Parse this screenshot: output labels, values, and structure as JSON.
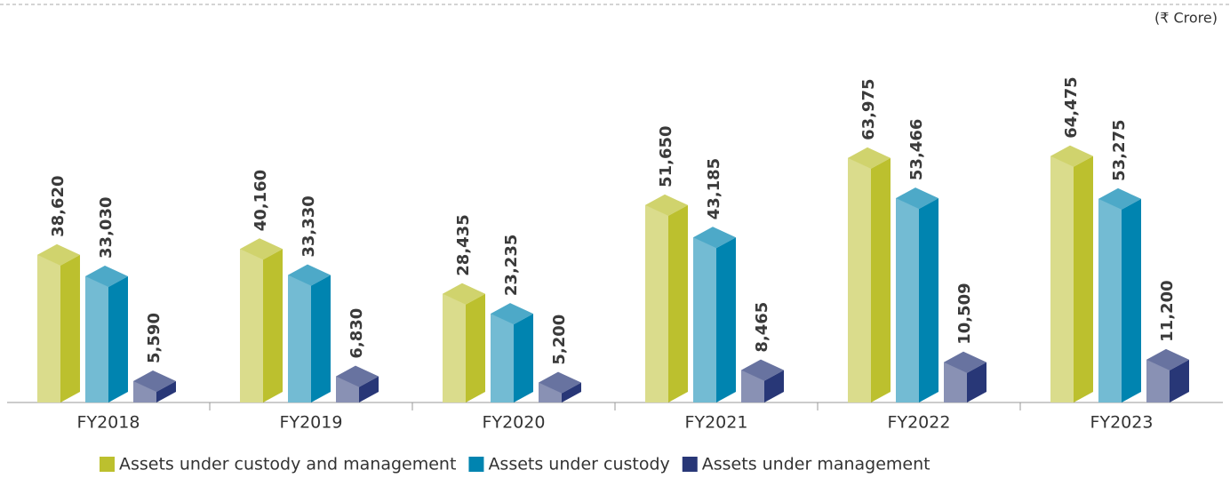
{
  "chart_data": {
    "type": "bar3d",
    "unit_note": "(₹ Crore)",
    "categories": [
      "FY2018",
      "FY2019",
      "FY2020",
      "FY2021",
      "FY2022",
      "FY2023"
    ],
    "series": [
      {
        "name": "Assets under custody and management",
        "color": "#bcc02e",
        "values": [
          38620,
          40160,
          28435,
          51650,
          63975,
          64475
        ],
        "value_labels": [
          "38,620",
          "40,160",
          "28,435",
          "51,650",
          "63,975",
          "64,475"
        ]
      },
      {
        "name": "Assets under custody",
        "color": "#0084b0",
        "values": [
          33030,
          33330,
          23235,
          43185,
          53466,
          53275
        ],
        "value_labels": [
          "33,030",
          "33,330",
          "23,235",
          "43,185",
          "53,466",
          "53,275"
        ]
      },
      {
        "name": "Assets under management",
        "color": "#283777",
        "values": [
          5590,
          6830,
          5200,
          8465,
          10509,
          11200
        ],
        "value_labels": [
          "5,590",
          "6,830",
          "5,200",
          "8,465",
          "10,509",
          "11,200"
        ]
      }
    ],
    "ylim": [
      0,
      70000
    ]
  }
}
